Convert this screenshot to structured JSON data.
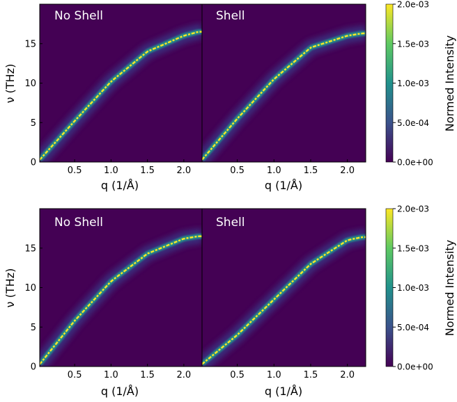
{
  "chart_data": [
    {
      "type": "heatmap",
      "panels": [
        {
          "title": "No Shell",
          "curve": {
            "q": [
              0.02,
              0.5,
              1.0,
              1.5,
              2.0,
              2.2
            ],
            "nu": [
              0.3,
              5.2,
              10.2,
              14.0,
              16.0,
              16.5
            ]
          }
        },
        {
          "title": "Shell",
          "curve": {
            "q": [
              0.02,
              0.5,
              1.0,
              1.5,
              2.0,
              2.2
            ],
            "nu": [
              0.3,
              5.5,
              10.5,
              14.5,
              16.0,
              16.3
            ]
          }
        }
      ],
      "xlabel": "q (1/Å)",
      "ylabel": "ν (THz)",
      "xticks": [
        "0.5",
        "1.0",
        "1.5",
        "2.0"
      ],
      "yticks": [
        "0",
        "5",
        "10",
        "15"
      ],
      "xlim": [
        0.02,
        2.25
      ],
      "ylim": [
        0,
        20
      ],
      "colorbar": {
        "label": "Normed Intensity",
        "ticks": [
          "2.0e-03",
          "1.5e-03",
          "1.0e-03",
          "5.0e-04",
          "0.0e+00"
        ],
        "range": [
          0,
          0.002
        ]
      }
    },
    {
      "type": "heatmap",
      "panels": [
        {
          "title": "No Shell",
          "curve": {
            "q": [
              0.02,
              0.5,
              1.0,
              1.5,
              2.0,
              2.2
            ],
            "nu": [
              0.3,
              5.8,
              10.8,
              14.3,
              16.2,
              16.5
            ]
          }
        },
        {
          "title": "Shell",
          "curve": {
            "q": [
              0.02,
              0.5,
              1.0,
              1.5,
              2.0,
              2.2
            ],
            "nu": [
              0.3,
              4.0,
              8.5,
              13.0,
              16.0,
              16.4
            ]
          }
        }
      ],
      "xlabel": "q (1/Å)",
      "ylabel": "ν (THz)",
      "xticks": [
        "0.5",
        "1.0",
        "1.5",
        "2.0"
      ],
      "yticks": [
        "0",
        "5",
        "10",
        "15"
      ],
      "xlim": [
        0.02,
        2.25
      ],
      "ylim": [
        0,
        20
      ],
      "colorbar": {
        "label": "Normed Intensity",
        "ticks": [
          "2.0e-03",
          "1.5e-03",
          "1.0e-03",
          "5.0e-04",
          "0.0e+00"
        ],
        "range": [
          0,
          0.002
        ]
      }
    }
  ],
  "colors": {
    "background": "#440154",
    "low": "#3b2f7e",
    "mid": "#21918c",
    "high": "#fde725"
  }
}
